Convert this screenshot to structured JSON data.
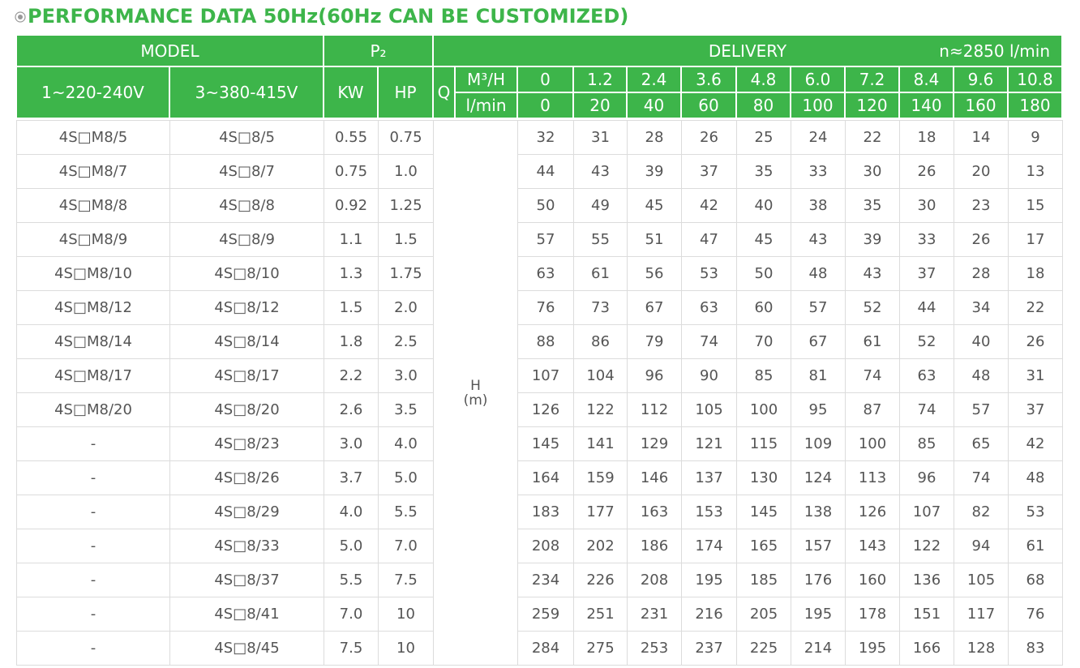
{
  "title": "PERFORMANCE DATA 50Hz(60Hz CAN BE CUSTOMIZED)",
  "header": {
    "model": "MODEL",
    "p2": "P₂",
    "delivery": "DELIVERY",
    "speed": "n≈2850 l/min",
    "voltage_1": "1~220-240V",
    "voltage_3": "3~380-415V",
    "kw": "KW",
    "hp": "HP",
    "q": "Q",
    "m3h": "M³/H",
    "lmin": "l/min",
    "flow_m3h": [
      "0",
      "1.2",
      "2.4",
      "3.6",
      "4.8",
      "6.0",
      "7.2",
      "8.4",
      "9.6",
      "10.8"
    ],
    "flow_lmin": [
      "0",
      "20",
      "40",
      "60",
      "80",
      "100",
      "120",
      "140",
      "160",
      "180"
    ]
  },
  "head_label": "H",
  "head_unit": "(m)",
  "rows": [
    [
      "4S□M8/5",
      "4S□8/5",
      "0.55",
      "0.75",
      "32",
      "31",
      "28",
      "26",
      "25",
      "24",
      "22",
      "18",
      "14",
      "9"
    ],
    [
      "4S□M8/7",
      "4S□8/7",
      "0.75",
      "1.0",
      "44",
      "43",
      "39",
      "37",
      "35",
      "33",
      "30",
      "26",
      "20",
      "13"
    ],
    [
      "4S□M8/8",
      "4S□8/8",
      "0.92",
      "1.25",
      "50",
      "49",
      "45",
      "42",
      "40",
      "38",
      "35",
      "30",
      "23",
      "15"
    ],
    [
      "4S□M8/9",
      "4S□8/9",
      "1.1",
      "1.5",
      "57",
      "55",
      "51",
      "47",
      "45",
      "43",
      "39",
      "33",
      "26",
      "17"
    ],
    [
      "4S□M8/10",
      "4S□8/10",
      "1.3",
      "1.75",
      "63",
      "61",
      "56",
      "53",
      "50",
      "48",
      "43",
      "37",
      "28",
      "18"
    ],
    [
      "4S□M8/12",
      "4S□8/12",
      "1.5",
      "2.0",
      "76",
      "73",
      "67",
      "63",
      "60",
      "57",
      "52",
      "44",
      "34",
      "22"
    ],
    [
      "4S□M8/14",
      "4S□8/14",
      "1.8",
      "2.5",
      "88",
      "86",
      "79",
      "74",
      "70",
      "67",
      "61",
      "52",
      "40",
      "26"
    ],
    [
      "4S□M8/17",
      "4S□8/17",
      "2.2",
      "3.0",
      "107",
      "104",
      "96",
      "90",
      "85",
      "81",
      "74",
      "63",
      "48",
      "31"
    ],
    [
      "4S□M8/20",
      "4S□8/20",
      "2.6",
      "3.5",
      "126",
      "122",
      "112",
      "105",
      "100",
      "95",
      "87",
      "74",
      "57",
      "37"
    ],
    [
      "-",
      "4S□8/23",
      "3.0",
      "4.0",
      "145",
      "141",
      "129",
      "121",
      "115",
      "109",
      "100",
      "85",
      "65",
      "42"
    ],
    [
      "-",
      "4S□8/26",
      "3.7",
      "5.0",
      "164",
      "159",
      "146",
      "137",
      "130",
      "124",
      "113",
      "96",
      "74",
      "48"
    ],
    [
      "-",
      "4S□8/29",
      "4.0",
      "5.5",
      "183",
      "177",
      "163",
      "153",
      "145",
      "138",
      "126",
      "107",
      "82",
      "53"
    ],
    [
      "-",
      "4S□8/33",
      "5.0",
      "7.0",
      "208",
      "202",
      "186",
      "174",
      "165",
      "157",
      "143",
      "122",
      "94",
      "61"
    ],
    [
      "-",
      "4S□8/37",
      "5.5",
      "7.5",
      "234",
      "226",
      "208",
      "195",
      "185",
      "176",
      "160",
      "136",
      "105",
      "68"
    ],
    [
      "-",
      "4S□8/41",
      "7.0",
      "10",
      "259",
      "251",
      "231",
      "216",
      "205",
      "195",
      "178",
      "151",
      "117",
      "76"
    ],
    [
      "-",
      "4S□8/45",
      "7.5",
      "10",
      "284",
      "275",
      "253",
      "237",
      "225",
      "214",
      "195",
      "166",
      "128",
      "83"
    ]
  ]
}
